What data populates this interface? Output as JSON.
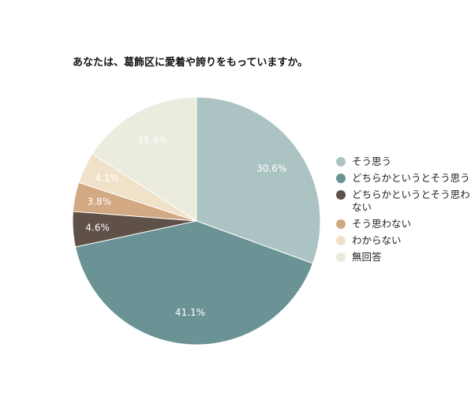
{
  "chart_data": {
    "type": "pie",
    "title": "あなたは、葛飾区に愛着や誇りをもっていますか。",
    "categories": [
      "そう思う",
      "どちらかというとそう思う",
      "どちらかというとそう思わない",
      "そう思わない",
      "わからない",
      "無回答"
    ],
    "values": [
      30.6,
      41.1,
      4.6,
      3.8,
      4.1,
      15.9
    ],
    "data_labels": [
      "30.6%",
      "41.1%",
      "4.6%",
      "3.8%",
      "4.1%",
      "15.9%"
    ],
    "colors": [
      "#abc3c2",
      "#6b9396",
      "#5f5148",
      "#d3a983",
      "#f0e2c9",
      "#ebebde"
    ],
    "label_colors": [
      "#ffffff",
      "#ffffff",
      "#ffffff",
      "#ffffff",
      "#ffffff",
      "#ffffff"
    ],
    "start_angle_deg": 0,
    "direction": "clockwise",
    "legend_position": "right"
  }
}
